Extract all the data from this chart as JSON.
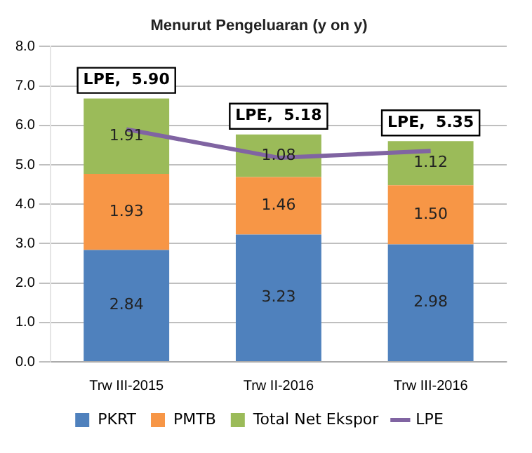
{
  "chart_data": {
    "type": "bar",
    "title": "Menurut Pengeluaran (y on y)",
    "categories": [
      "Trw III-2015",
      "Trw II-2016",
      "Trw III-2016"
    ],
    "stacked": true,
    "ylim": [
      0,
      8
    ],
    "yticks": [
      {
        "value": 0,
        "label": "0.0"
      },
      {
        "value": 1,
        "label": "1.0"
      },
      {
        "value": 2,
        "label": "2.0"
      },
      {
        "value": 3,
        "label": "3.0"
      },
      {
        "value": 4,
        "label": "4.0"
      },
      {
        "value": 5,
        "label": "5.0"
      },
      {
        "value": 6,
        "label": "6.0"
      },
      {
        "value": 7,
        "label": "7.0"
      },
      {
        "value": 8,
        "label": "8.0"
      }
    ],
    "grid": "y",
    "legend": "bottom",
    "marker": "none",
    "series": [
      {
        "name": "PKRT",
        "color": "#4f81bd",
        "values": [
          2.84,
          3.23,
          2.98
        ],
        "value_labels": [
          "2.84",
          "3.23",
          "2.98"
        ]
      },
      {
        "name": "PMTB",
        "color": "#f79646",
        "values": [
          1.93,
          1.46,
          1.5
        ],
        "value_labels": [
          "1.93",
          "1.46",
          "1.50"
        ]
      },
      {
        "name": "Total Net Ekspor",
        "color": "#9bbb59",
        "values": [
          1.91,
          1.08,
          1.12
        ],
        "value_labels": [
          "1.91",
          "1.08",
          "1.12"
        ]
      },
      {
        "name": "LPE",
        "type": "line",
        "color": "#8064a2",
        "values": [
          5.9,
          5.18,
          5.35
        ],
        "value_labels": [
          "LPE,  5.90",
          "LPE,  5.18",
          "LPE,  5.35"
        ]
      }
    ]
  }
}
